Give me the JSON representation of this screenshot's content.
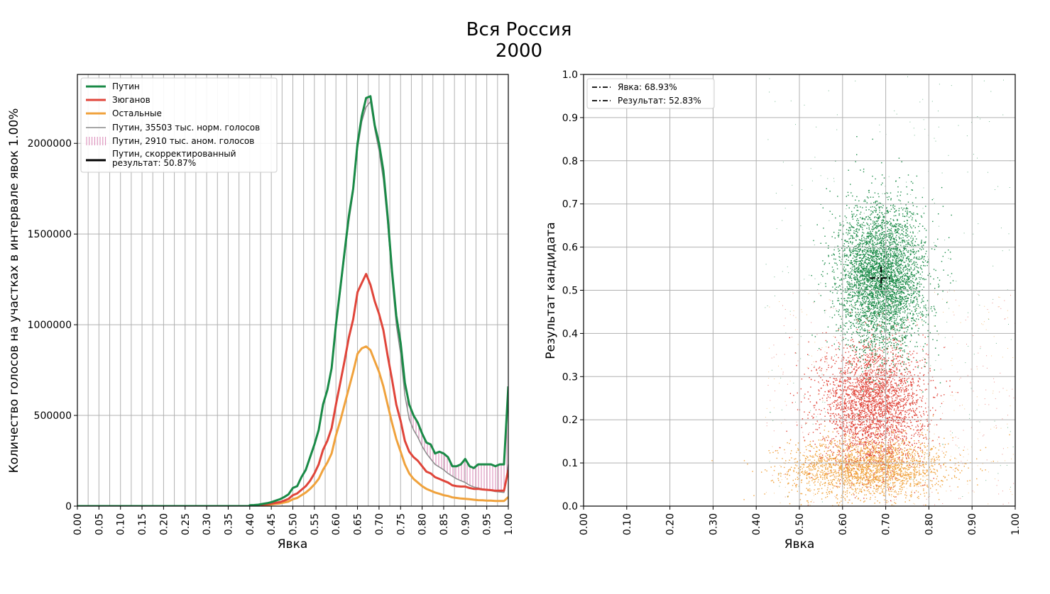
{
  "figure_title": [
    "Вся Россия",
    "2000"
  ],
  "chart_data": [
    {
      "type": "line",
      "xlabel": "Явка",
      "ylabel": "Количество голосов на участках в интервале явок 1.00%",
      "xlim": [
        0,
        1
      ],
      "ylim": [
        0,
        2380000
      ],
      "xticks": [
        "0.00",
        "0.05",
        "0.10",
        "0.15",
        "0.20",
        "0.25",
        "0.30",
        "0.35",
        "0.40",
        "0.45",
        "0.50",
        "0.55",
        "0.60",
        "0.65",
        "0.70",
        "0.75",
        "0.80",
        "0.85",
        "0.90",
        "0.95",
        "1.00"
      ],
      "yticks": [
        {
          "v": 0,
          "label": "0"
        },
        {
          "v": 500000,
          "label": "500000"
        },
        {
          "v": 1000000,
          "label": "1000000"
        },
        {
          "v": 1500000,
          "label": "1500000"
        },
        {
          "v": 2000000,
          "label": "2000000"
        }
      ],
      "grid": true,
      "legend_position": "top-left",
      "legend": [
        {
          "label": "Путин",
          "color": "#1a8a47",
          "style": "line"
        },
        {
          "label": "Зюганов",
          "color": "#e0453a",
          "style": "line"
        },
        {
          "label": "Остальные",
          "color": "#f0a23c",
          "style": "line"
        },
        {
          "label": "Путин, 35503 тыс. норм. голосов",
          "color": "#888888",
          "style": "thin"
        },
        {
          "label": "Путин, 2910 тыс. аном. голосов",
          "color": "#d884b4",
          "style": "hatch"
        },
        {
          "label": "Путин, скорректированный",
          "label2": "результат: 50.87%",
          "color": "#000000",
          "style": "line"
        }
      ],
      "x": [
        0.4,
        0.41,
        0.42,
        0.43,
        0.44,
        0.45,
        0.46,
        0.47,
        0.48,
        0.49,
        0.5,
        0.51,
        0.52,
        0.53,
        0.54,
        0.55,
        0.56,
        0.57,
        0.58,
        0.59,
        0.6,
        0.61,
        0.62,
        0.63,
        0.64,
        0.65,
        0.66,
        0.67,
        0.68,
        0.69,
        0.7,
        0.71,
        0.72,
        0.73,
        0.74,
        0.75,
        0.76,
        0.77,
        0.78,
        0.79,
        0.8,
        0.81,
        0.82,
        0.83,
        0.84,
        0.85,
        0.86,
        0.87,
        0.88,
        0.89,
        0.9,
        0.91,
        0.92,
        0.93,
        0.94,
        0.95,
        0.96,
        0.97,
        0.98,
        0.99,
        1.0
      ],
      "series": [
        {
          "name": "Путин",
          "color": "#1a8a47",
          "width": 3,
          "values": [
            5000,
            6000,
            8000,
            12000,
            16000,
            22000,
            30000,
            38000,
            50000,
            65000,
            100000,
            110000,
            160000,
            200000,
            270000,
            340000,
            420000,
            560000,
            640000,
            760000,
            1000000,
            1200000,
            1400000,
            1600000,
            1750000,
            2000000,
            2150000,
            2250000,
            2260000,
            2100000,
            2000000,
            1850000,
            1600000,
            1300000,
            1050000,
            900000,
            680000,
            560000,
            500000,
            460000,
            400000,
            350000,
            340000,
            290000,
            300000,
            290000,
            270000,
            220000,
            220000,
            230000,
            260000,
            220000,
            210000,
            230000,
            230000,
            230000,
            230000,
            220000,
            230000,
            230000,
            660000
          ]
        },
        {
          "name": "Зюганов",
          "color": "#e0453a",
          "width": 3,
          "values": [
            3000,
            4000,
            6000,
            8000,
            10000,
            14000,
            18000,
            22000,
            30000,
            40000,
            60000,
            70000,
            90000,
            110000,
            140000,
            180000,
            230000,
            310000,
            360000,
            430000,
            560000,
            680000,
            800000,
            930000,
            1030000,
            1180000,
            1230000,
            1280000,
            1220000,
            1130000,
            1060000,
            970000,
            830000,
            700000,
            560000,
            470000,
            360000,
            300000,
            270000,
            250000,
            220000,
            190000,
            180000,
            160000,
            150000,
            140000,
            130000,
            115000,
            110000,
            108000,
            108000,
            100000,
            95000,
            95000,
            92000,
            90000,
            88000,
            85000,
            85000,
            85000,
            200000
          ]
        },
        {
          "name": "Остальные",
          "color": "#f0a23c",
          "width": 3,
          "values": [
            2000,
            3000,
            4000,
            5000,
            7000,
            9000,
            12000,
            15000,
            20000,
            25000,
            38000,
            45000,
            60000,
            75000,
            95000,
            120000,
            150000,
            200000,
            240000,
            290000,
            390000,
            470000,
            560000,
            650000,
            740000,
            840000,
            870000,
            880000,
            860000,
            800000,
            740000,
            660000,
            560000,
            460000,
            370000,
            300000,
            230000,
            180000,
            150000,
            130000,
            110000,
            95000,
            85000,
            75000,
            68000,
            60000,
            56000,
            48000,
            45000,
            42000,
            40000,
            38000,
            35000,
            33000,
            32000,
            30000,
            30000,
            28000,
            28000,
            28000,
            50000
          ]
        },
        {
          "name": "Путин, 35503 тыс. норм. голосов",
          "color": "#8a8a8a",
          "width": 1.5,
          "values": [
            5000,
            6000,
            8000,
            12000,
            16000,
            22000,
            30000,
            38000,
            50000,
            65000,
            100000,
            110000,
            160000,
            200000,
            270000,
            340000,
            420000,
            560000,
            640000,
            760000,
            990000,
            1180000,
            1380000,
            1570000,
            1730000,
            1970000,
            2120000,
            2200000,
            2230000,
            2080000,
            1960000,
            1800000,
            1560000,
            1260000,
            1000000,
            840000,
            610000,
            480000,
            420000,
            380000,
            330000,
            290000,
            260000,
            230000,
            215000,
            200000,
            180000,
            165000,
            150000,
            140000,
            130000,
            115000,
            105000,
            100000,
            95000,
            90000,
            85000,
            80000,
            78000,
            75000,
            230000
          ]
        }
      ]
    },
    {
      "type": "scatter",
      "xlabel": "Явка",
      "ylabel": "Результат кандидата",
      "xlim": [
        0,
        1
      ],
      "ylim": [
        0,
        1
      ],
      "xticks": [
        "0.00",
        "0.10",
        "0.20",
        "0.30",
        "0.40",
        "0.50",
        "0.60",
        "0.70",
        "0.80",
        "0.90",
        "1.00"
      ],
      "yticks": [
        "0.0",
        "0.1",
        "0.2",
        "0.3",
        "0.4",
        "0.5",
        "0.6",
        "0.7",
        "0.8",
        "0.9",
        "1.0"
      ],
      "grid": true,
      "legend_position": "top-left",
      "legend": [
        {
          "label": "Явка: 68.93%",
          "style": "dashdot"
        },
        {
          "label": "Результат: 52.83%",
          "style": "dashdot"
        }
      ],
      "marker": {
        "x": 0.6893,
        "y": 0.5283
      },
      "clusters": [
        {
          "name": "Путин",
          "color": "#1a8a47",
          "cx": 0.69,
          "cy": 0.53,
          "sx": 0.05,
          "sy": 0.085
        },
        {
          "name": "Зюганов",
          "color": "#e0453a",
          "cx": 0.67,
          "cy": 0.24,
          "sx": 0.06,
          "sy": 0.07
        },
        {
          "name": "Остальные",
          "color": "#f0a23c",
          "cx": 0.66,
          "cy": 0.09,
          "sx": 0.09,
          "sy": 0.035
        }
      ]
    }
  ]
}
